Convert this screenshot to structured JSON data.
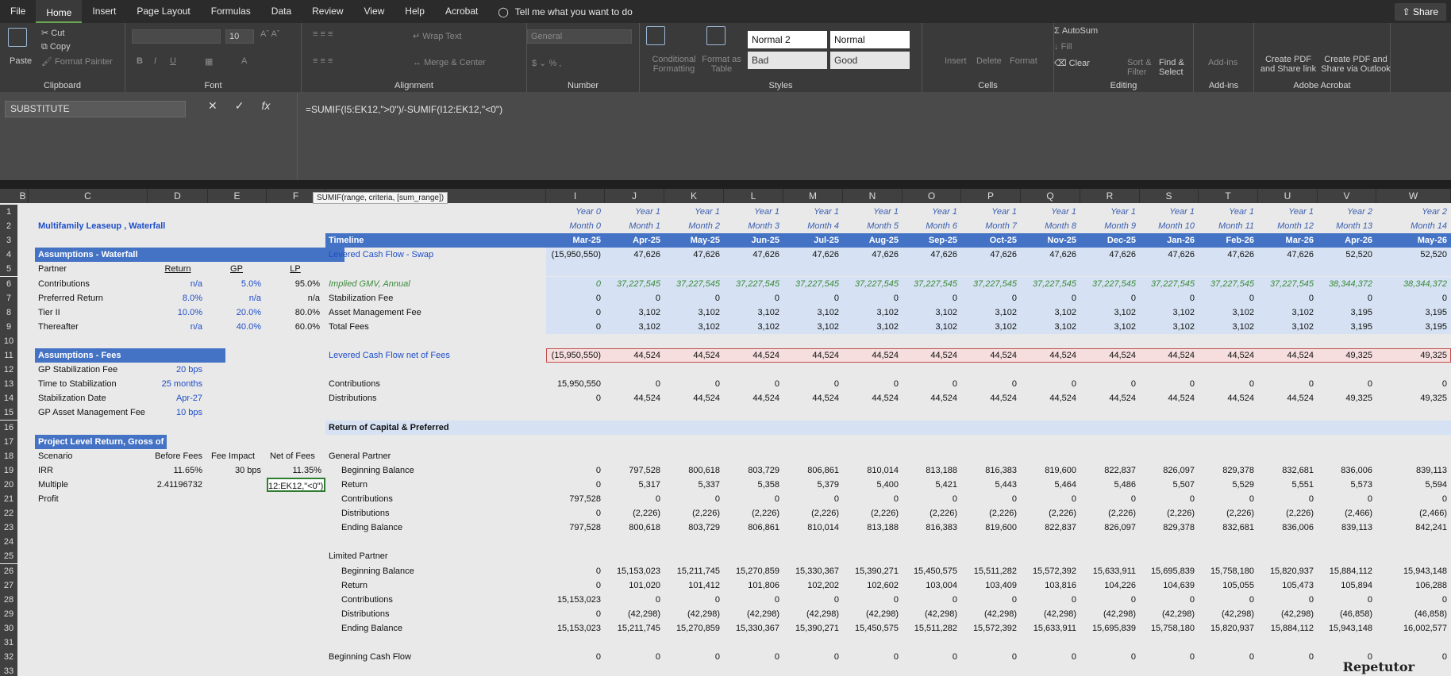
{
  "menu": [
    "File",
    "Home",
    "Insert",
    "Page Layout",
    "Formulas",
    "Data",
    "Review",
    "View",
    "Help",
    "Acrobat"
  ],
  "tell": "Tell me what you want to do",
  "share": "Share",
  "ribbon": {
    "clipboard": {
      "paste": "Paste",
      "cut": "Cut",
      "copy": "Copy",
      "format_painter": "Format Painter",
      "label": "Clipboard"
    },
    "font": {
      "size": "10",
      "label": "Font"
    },
    "alignment": {
      "wrap": "Wrap Text",
      "merge": "Merge & Center",
      "label": "Alignment"
    },
    "number": {
      "format": "General",
      "label": "Number"
    },
    "styles": {
      "cond": "Conditional Formatting",
      "table": "Format as Table",
      "normal2": "Normal 2",
      "normal": "Normal",
      "bad": "Bad",
      "good": "Good",
      "label": "Styles"
    },
    "cells": {
      "insert": "Insert",
      "delete": "Delete",
      "format": "Format",
      "label": "Cells"
    },
    "editing": {
      "autosum": "AutoSum",
      "fill": "Fill",
      "clear": "Clear",
      "sort": "Sort & Filter",
      "find": "Find & Select",
      "label": "Editing"
    },
    "addins": {
      "btn": "Add-ins",
      "label": "Add-ins"
    },
    "acrobat": {
      "pdf1": "Create PDF and Share link",
      "pdf2": "Create PDF and Share via Outlook",
      "label": "Adobe Acrobat"
    }
  },
  "namebox": "SUBSTITUTE",
  "formula": "=SUMIF(I5:EK12,\">0\")/-SUMIF(I12:EK12,\"<0\")",
  "tooltip": "SUMIF(range, criteria, [sum_range])",
  "columns": [
    "B",
    "C",
    "D",
    "E",
    "F",
    "",
    "I",
    "J",
    "K",
    "L",
    "M",
    "N",
    "O",
    "P",
    "Q",
    "R",
    "S",
    "T",
    "U",
    "V",
    "W"
  ],
  "year_row": [
    "Year 0",
    "Year 1",
    "Year 1",
    "Year 1",
    "Year 1",
    "Year 1",
    "Year 1",
    "Year 1",
    "Year 1",
    "Year 1",
    "Year 1",
    "Year 1",
    "Year 1",
    "Year 2",
    "Year 2"
  ],
  "month_row": [
    "Month 0",
    "Month 1",
    "Month 2",
    "Month 3",
    "Month 4",
    "Month 5",
    "Month 6",
    "Month 7",
    "Month 8",
    "Month 9",
    "Month 10",
    "Month 11",
    "Month 12",
    "Month 13",
    "Month 14"
  ],
  "dates": [
    "Mar-25",
    "Apr-25",
    "May-25",
    "Jun-25",
    "Jul-25",
    "Aug-25",
    "Sep-25",
    "Oct-25",
    "Nov-25",
    "Dec-25",
    "Jan-26",
    "Feb-26",
    "Mar-26",
    "Apr-26",
    "May-26"
  ],
  "left": {
    "title": "Multifamily Leaseup , Waterfall",
    "assump_wf": "Assumptions - Waterfall",
    "col_return": "Return",
    "col_gp": "GP",
    "col_lp": "LP",
    "rows": [
      [
        "Partner",
        "Return",
        "GP",
        "LP"
      ],
      [
        "Contributions",
        "n/a",
        "5.0%",
        "95.0%"
      ],
      [
        "Preferred Return",
        "8.0%",
        "n/a",
        "n/a"
      ],
      [
        "Tier II",
        "10.0%",
        "20.0%",
        "80.0%"
      ],
      [
        "Thereafter",
        "n/a",
        "40.0%",
        "60.0%"
      ]
    ],
    "assump_fees": "Assumptions - Fees",
    "fees": [
      [
        "GP Stabilization Fee",
        "20 bps"
      ],
      [
        "Time to Stabilization",
        "25 months"
      ],
      [
        "Stabilization Date",
        "Apr-27"
      ],
      [
        "GP Asset Management Fee",
        "10 bps"
      ]
    ],
    "proj_title": "Project Level Return, Gross of Fees",
    "proj_hdr": [
      "Scenario",
      "Before Fees",
      "Fee Impact",
      "Net of Fees"
    ],
    "proj_rows": [
      [
        "IRR",
        "11.65%",
        "30 bps",
        "11.35%"
      ],
      [
        "Multiple",
        "2.41196732",
        "",
        "12:EK12,\"<0\")"
      ],
      [
        "Profit",
        "",
        "",
        ""
      ]
    ]
  },
  "timeline_label": "Timeline",
  "grid": [
    {
      "label": "Levered Cash Flow - Swap",
      "vals": [
        "(15,950,550)",
        "47,626",
        "47,626",
        "47,626",
        "47,626",
        "47,626",
        "47,626",
        "47,626",
        "47,626",
        "47,626",
        "47,626",
        "47,626",
        "47,626",
        "52,520",
        "52,520"
      ]
    },
    {
      "label": "",
      "vals": []
    },
    {
      "label": "Implied GMV, Annual",
      "vals": [
        "0",
        "37,227,545",
        "37,227,545",
        "37,227,545",
        "37,227,545",
        "37,227,545",
        "37,227,545",
        "37,227,545",
        "37,227,545",
        "37,227,545",
        "37,227,545",
        "37,227,545",
        "37,227,545",
        "38,344,372",
        "38,344,372"
      ]
    },
    {
      "label": "Stabilization Fee",
      "vals": [
        "0",
        "0",
        "0",
        "0",
        "0",
        "0",
        "0",
        "0",
        "0",
        "0",
        "0",
        "0",
        "0",
        "0",
        "0"
      ]
    },
    {
      "label": "Asset Management Fee",
      "vals": [
        "0",
        "3,102",
        "3,102",
        "3,102",
        "3,102",
        "3,102",
        "3,102",
        "3,102",
        "3,102",
        "3,102",
        "3,102",
        "3,102",
        "3,102",
        "3,195",
        "3,195"
      ]
    },
    {
      "label": "Total Fees",
      "vals": [
        "0",
        "3,102",
        "3,102",
        "3,102",
        "3,102",
        "3,102",
        "3,102",
        "3,102",
        "3,102",
        "3,102",
        "3,102",
        "3,102",
        "3,102",
        "3,195",
        "3,195"
      ]
    },
    {
      "label": "",
      "vals": []
    },
    {
      "label": "Levered Cash Flow net of Fees",
      "vals": [
        "(15,950,550)",
        "44,524",
        "44,524",
        "44,524",
        "44,524",
        "44,524",
        "44,524",
        "44,524",
        "44,524",
        "44,524",
        "44,524",
        "44,524",
        "44,524",
        "49,325",
        "49,325"
      ]
    },
    {
      "label": "",
      "vals": []
    },
    {
      "label": "Contributions",
      "vals": [
        "15,950,550",
        "0",
        "0",
        "0",
        "0",
        "0",
        "0",
        "0",
        "0",
        "0",
        "0",
        "0",
        "0",
        "0",
        "0"
      ]
    },
    {
      "label": "Distributions",
      "vals": [
        "0",
        "44,524",
        "44,524",
        "44,524",
        "44,524",
        "44,524",
        "44,524",
        "44,524",
        "44,524",
        "44,524",
        "44,524",
        "44,524",
        "44,524",
        "49,325",
        "49,325"
      ]
    },
    {
      "label": "",
      "vals": []
    },
    {
      "label": "Return of Capital & Preferred",
      "vals": []
    },
    {
      "label": "",
      "vals": []
    },
    {
      "label": "General Partner",
      "vals": []
    },
    {
      "label": "Beginning Balance",
      "vals": [
        "0",
        "797,528",
        "800,618",
        "803,729",
        "806,861",
        "810,014",
        "813,188",
        "816,383",
        "819,600",
        "822,837",
        "826,097",
        "829,378",
        "832,681",
        "836,006",
        "839,113"
      ]
    },
    {
      "label": "Return",
      "vals": [
        "0",
        "5,317",
        "5,337",
        "5,358",
        "5,379",
        "5,400",
        "5,421",
        "5,443",
        "5,464",
        "5,486",
        "5,507",
        "5,529",
        "5,551",
        "5,573",
        "5,594"
      ]
    },
    {
      "label": "Contributions",
      "vals": [
        "797,528",
        "0",
        "0",
        "0",
        "0",
        "0",
        "0",
        "0",
        "0",
        "0",
        "0",
        "0",
        "0",
        "0",
        "0"
      ]
    },
    {
      "label": "Distributions",
      "vals": [
        "0",
        "(2,226)",
        "(2,226)",
        "(2,226)",
        "(2,226)",
        "(2,226)",
        "(2,226)",
        "(2,226)",
        "(2,226)",
        "(2,226)",
        "(2,226)",
        "(2,226)",
        "(2,226)",
        "(2,466)",
        "(2,466)"
      ]
    },
    {
      "label": "Ending Balance",
      "vals": [
        "797,528",
        "800,618",
        "803,729",
        "806,861",
        "810,014",
        "813,188",
        "816,383",
        "819,600",
        "822,837",
        "826,097",
        "829,378",
        "832,681",
        "836,006",
        "839,113",
        "842,241"
      ]
    },
    {
      "label": "",
      "vals": []
    },
    {
      "label": "Limited Partner",
      "vals": []
    },
    {
      "label": "Beginning Balance",
      "vals": [
        "0",
        "15,153,023",
        "15,211,745",
        "15,270,859",
        "15,330,367",
        "15,390,271",
        "15,450,575",
        "15,511,282",
        "15,572,392",
        "15,633,911",
        "15,695,839",
        "15,758,180",
        "15,820,937",
        "15,884,112",
        "15,943,148"
      ]
    },
    {
      "label": "Return",
      "vals": [
        "0",
        "101,020",
        "101,412",
        "101,806",
        "102,202",
        "102,602",
        "103,004",
        "103,409",
        "103,816",
        "104,226",
        "104,639",
        "105,055",
        "105,473",
        "105,894",
        "106,288"
      ]
    },
    {
      "label": "Contributions",
      "vals": [
        "15,153,023",
        "0",
        "0",
        "0",
        "0",
        "0",
        "0",
        "0",
        "0",
        "0",
        "0",
        "0",
        "0",
        "0",
        "0"
      ]
    },
    {
      "label": "Distributions",
      "vals": [
        "0",
        "(42,298)",
        "(42,298)",
        "(42,298)",
        "(42,298)",
        "(42,298)",
        "(42,298)",
        "(42,298)",
        "(42,298)",
        "(42,298)",
        "(42,298)",
        "(42,298)",
        "(42,298)",
        "(46,858)",
        "(46,858)"
      ]
    },
    {
      "label": "Ending Balance",
      "vals": [
        "15,153,023",
        "15,211,745",
        "15,270,859",
        "15,330,367",
        "15,390,271",
        "15,450,575",
        "15,511,282",
        "15,572,392",
        "15,633,911",
        "15,695,839",
        "15,758,180",
        "15,820,937",
        "15,884,112",
        "15,943,148",
        "16,002,577"
      ]
    },
    {
      "label": "",
      "vals": []
    },
    {
      "label": "Beginning Cash Flow",
      "vals": [
        "0",
        "0",
        "0",
        "0",
        "0",
        "0",
        "0",
        "0",
        "0",
        "0",
        "0",
        "0",
        "0",
        "0",
        "0"
      ]
    }
  ],
  "watermark": "Repetutor"
}
